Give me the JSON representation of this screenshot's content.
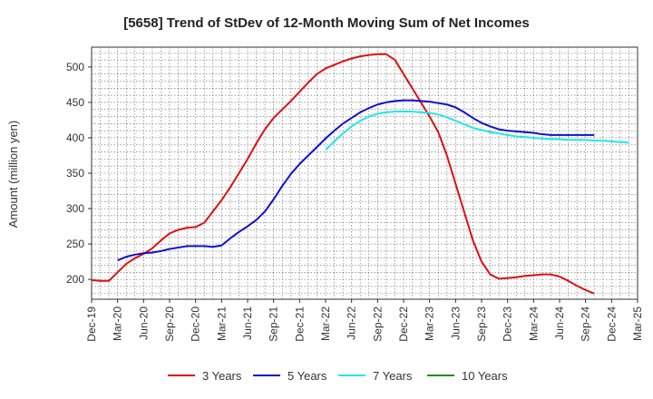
{
  "chart_data": {
    "type": "line",
    "title": "[5658]  Trend of StDev of 12-Month Moving Sum of Net Incomes",
    "ylabel": "Amount (million yen)",
    "xlabel": "",
    "ylim": [
      172,
      528
    ],
    "yticks": [
      200,
      250,
      300,
      350,
      400,
      450,
      500
    ],
    "x_start": "Dec-19",
    "x_step_months": 1,
    "x_ticks": [
      "Dec-19",
      "Mar-20",
      "Jun-20",
      "Sep-20",
      "Dec-20",
      "Mar-21",
      "Jun-21",
      "Sep-21",
      "Dec-21",
      "Mar-22",
      "Jun-22",
      "Sep-22",
      "Dec-22",
      "Mar-23",
      "Jun-23",
      "Sep-23",
      "Dec-23",
      "Mar-24",
      "Jun-24",
      "Sep-24",
      "Dec-24",
      "Mar-25"
    ],
    "grid": true,
    "legend_position": "bottom",
    "series": [
      {
        "name": "3 Years",
        "color": "#dd1111",
        "start": "Dec-19",
        "values": [
          199,
          198,
          198,
          210,
          222,
          230,
          236,
          244,
          255,
          265,
          270,
          273,
          274,
          280,
          296,
          312,
          330,
          350,
          370,
          392,
          412,
          428,
          440,
          452,
          465,
          478,
          490,
          498,
          503,
          508,
          512,
          515,
          517,
          518,
          518,
          510,
          490,
          470,
          450,
          430,
          408,
          375,
          335,
          295,
          255,
          225,
          207,
          201,
          202,
          203,
          205,
          206,
          207,
          207,
          204,
          198,
          191,
          185,
          180
        ]
      },
      {
        "name": "5 Years",
        "color": "#1111cc",
        "start": "Dec-19",
        "values": [
          null,
          null,
          null,
          227,
          232,
          235,
          237,
          238,
          240,
          243,
          245,
          247,
          247,
          247,
          246,
          248,
          258,
          267,
          275,
          284,
          296,
          313,
          332,
          349,
          363,
          375,
          387,
          399,
          410,
          420,
          428,
          436,
          442,
          447,
          450,
          452,
          453,
          453,
          452,
          451,
          449,
          447,
          443,
          436,
          428,
          421,
          416,
          412,
          410,
          409,
          408,
          407,
          405,
          404,
          404,
          404,
          404,
          404,
          404
        ]
      },
      {
        "name": "7 Years",
        "color": "#22e6e6",
        "start": "Dec-19",
        "values": [
          null,
          null,
          null,
          null,
          null,
          null,
          null,
          null,
          null,
          null,
          null,
          null,
          null,
          null,
          null,
          null,
          null,
          null,
          null,
          null,
          null,
          null,
          null,
          null,
          null,
          null,
          null,
          null,
          null,
          null,
          null,
          null,
          null,
          null,
          null,
          null,
          null,
          null,
          null,
          null,
          null,
          null,
          null,
          null,
          null,
          null,
          null,
          null,
          null,
          null,
          null,
          null,
          null,
          null,
          null,
          null,
          null,
          null,
          null
        ]
      },
      {
        "name": "10 Years",
        "color": "#228b22",
        "start": "Dec-19",
        "values": []
      }
    ],
    "series_7y_from_mar22": [
      383,
      395,
      406,
      416,
      424,
      430,
      434,
      436,
      437,
      437,
      437,
      436,
      435,
      433,
      429,
      424,
      419,
      414,
      411,
      408,
      406,
      404,
      402,
      401,
      400,
      399,
      398,
      398,
      397,
      397,
      397,
      396,
      396,
      395,
      394,
      393
    ]
  }
}
